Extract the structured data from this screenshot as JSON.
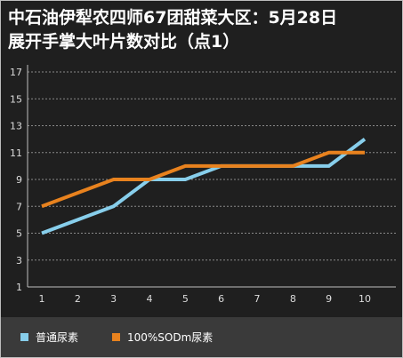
{
  "chart_data": {
    "type": "line",
    "title_lines": [
      "中石油伊犁农四师67团甜菜大区：5月28日",
      "展开手掌大叶片数对比（点1）"
    ],
    "x": [
      1,
      2,
      3,
      4,
      5,
      6,
      7,
      8,
      9,
      10
    ],
    "x_tick_labels": [
      "1",
      "2",
      "3",
      "4",
      "5",
      "6",
      "7",
      "8",
      "9",
      "10"
    ],
    "y_tick_labels": [
      "1",
      "3",
      "5",
      "7",
      "9",
      "11",
      "13",
      "15",
      "17"
    ],
    "ylim": [
      1,
      17
    ],
    "grid": "horizontal dashed",
    "legend_position": "bottom",
    "series": [
      {
        "name": "普通尿素",
        "color": "#87ceeb",
        "values": [
          5,
          6,
          7,
          9,
          9,
          10,
          10,
          10,
          10,
          12
        ]
      },
      {
        "name": "100%SODm尿素",
        "color": "#e8821e",
        "values": [
          7,
          8,
          9,
          9,
          10,
          10,
          10,
          10,
          11,
          11
        ]
      }
    ]
  }
}
